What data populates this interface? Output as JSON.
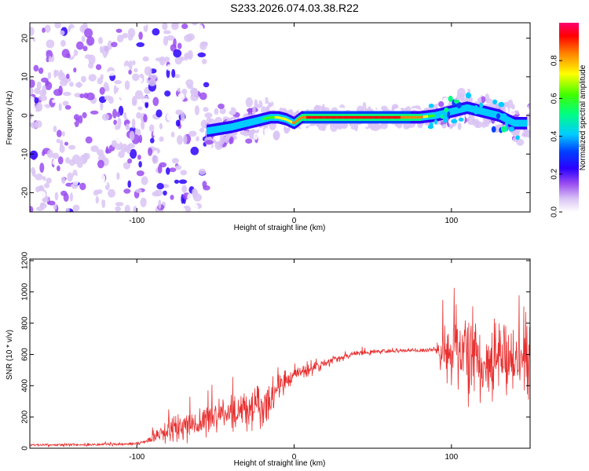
{
  "title": "S233.2026.074.03.38.R22",
  "chart_data": [
    {
      "type": "heatmap",
      "xlabel": "Height of straight line (km)",
      "ylabel": "Frequency (Hz)",
      "xlim": [
        -168,
        150
      ],
      "ylim": [
        -25,
        24
      ],
      "xticks": [
        -100,
        0,
        100
      ],
      "xtick_labels": [
        "-100",
        "0",
        "100"
      ],
      "yticks": [
        -20,
        -10,
        0,
        10,
        20
      ],
      "ytick_labels": [
        "-20",
        "-10",
        "0",
        "10",
        "20"
      ],
      "colorbar": {
        "label": "Normalized spectral amplitude",
        "range": [
          0,
          1
        ],
        "ticks": [
          0.0,
          0.2,
          0.4,
          0.6,
          0.8
        ],
        "tick_labels": [
          "0.0",
          "0.2",
          "0.4",
          "0.6",
          "0.8"
        ]
      },
      "ridge": {
        "x": [
          -55,
          -40,
          -30,
          -20,
          -15,
          -10,
          -5,
          0,
          5,
          10,
          20,
          40,
          60,
          80,
          90,
          100,
          110,
          120,
          130,
          140,
          148
        ],
        "freq": [
          -4,
          -3,
          -2,
          -1,
          -0.5,
          -0.5,
          -1,
          -2,
          -0.5,
          -0.5,
          -0.5,
          -0.5,
          -0.5,
          -0.5,
          0,
          1,
          2,
          1,
          0,
          -2,
          -2
        ],
        "amplitude": [
          0.2,
          0.3,
          0.4,
          0.6,
          0.7,
          0.75,
          0.8,
          0.85,
          0.9,
          0.95,
          0.95,
          0.95,
          0.95,
          0.9,
          0.6,
          0.5,
          0.45,
          0.45,
          0.4,
          0.35,
          0.35
        ]
      },
      "noise_region_x": [
        -168,
        -55
      ],
      "noise_freq_range": [
        -25,
        24
      ]
    },
    {
      "type": "line",
      "xlabel": "Height of straight line (km)",
      "ylabel": "SNR (10 * v/v)",
      "xlim": [
        -168,
        150
      ],
      "ylim": [
        0,
        1210
      ],
      "xticks": [
        -100,
        0,
        100
      ],
      "xtick_labels": [
        "-100",
        "0",
        "100"
      ],
      "yticks": [
        0,
        200,
        400,
        600,
        800,
        1000,
        1200
      ],
      "ytick_labels": [
        "0",
        "200",
        "400",
        "600",
        "800",
        "1000",
        "1200"
      ],
      "series": [
        {
          "name": "SNR",
          "color": "#e83030",
          "x": [
            -168,
            -140,
            -110,
            -100,
            -95,
            -90,
            -85,
            -80,
            -70,
            -60,
            -50,
            -40,
            -30,
            -20,
            -15,
            -10,
            -5,
            0,
            10,
            20,
            30,
            40,
            50,
            60,
            70,
            80,
            90,
            95,
            100,
            110,
            120,
            130,
            140,
            150
          ],
          "y": [
            20,
            22,
            25,
            30,
            40,
            60,
            90,
            110,
            150,
            170,
            200,
            230,
            250,
            270,
            300,
            400,
            440,
            480,
            500,
            540,
            580,
            610,
            615,
            620,
            625,
            625,
            630,
            600,
            580,
            560,
            560,
            570,
            560,
            560
          ],
          "spread": [
            10,
            10,
            10,
            12,
            20,
            40,
            60,
            80,
            120,
            110,
            130,
            130,
            140,
            150,
            120,
            90,
            80,
            60,
            50,
            40,
            25,
            20,
            18,
            16,
            16,
            16,
            20,
            200,
            250,
            280,
            300,
            280,
            250,
            230
          ]
        }
      ]
    }
  ]
}
